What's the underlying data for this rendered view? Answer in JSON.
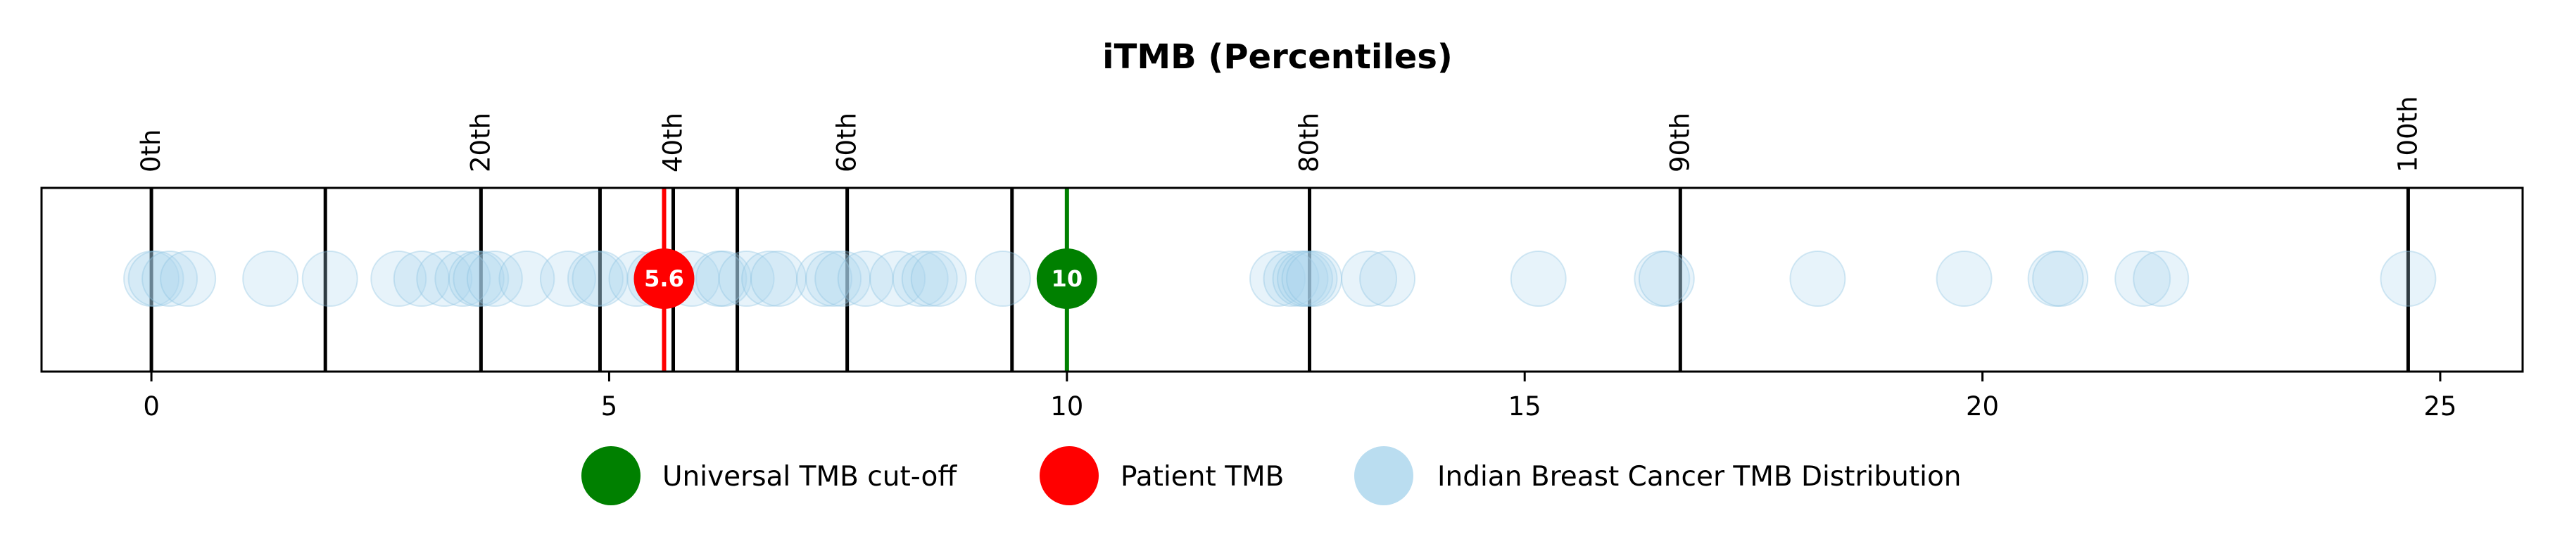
{
  "chart_data": {
    "type": "scatter",
    "title": "iTMB (Percentiles)",
    "xlim": [
      -1.2,
      25.9
    ],
    "x_ticks": [
      0,
      5,
      10,
      15,
      20,
      25
    ],
    "percentile_lines": [
      {
        "label": "0th",
        "x": 0
      },
      {
        "label": "20th",
        "x": 3.6
      },
      {
        "label": "40th",
        "x": 5.7
      },
      {
        "label": "60th",
        "x": 7.6
      },
      {
        "label": "80th",
        "x": 12.65
      },
      {
        "label": "90th",
        "x": 16.7
      },
      {
        "label": "100th",
        "x": 24.65
      }
    ],
    "unlabeled_lines": [
      1.9,
      4.9,
      6.4,
      9.4
    ],
    "series": [
      {
        "name": "Indian Breast Cancer TMB Distribution",
        "color": "#a9d4ec",
        "x": [
          0,
          0.05,
          0.2,
          0.4,
          1.3,
          1.95,
          2.7,
          2.95,
          3.2,
          3.4,
          3.55,
          3.6,
          3.75,
          4.1,
          4.55,
          4.85,
          4.9,
          5.3,
          5.5,
          5.9,
          6.2,
          6.25,
          6.5,
          6.75,
          6.85,
          7.35,
          7.45,
          7.55,
          7.8,
          8.15,
          8.4,
          8.5,
          8.6,
          9.3,
          12.3,
          12.45,
          12.55,
          12.6,
          12.65,
          12.7,
          13.3,
          13.5,
          15.15,
          16.5,
          16.55,
          18.2,
          19.8,
          20.8,
          20.85,
          21.75,
          21.95,
          24.65
        ],
        "y": 0
      },
      {
        "name": "Patient TMB",
        "color": "#ff0000",
        "x": [
          5.6
        ],
        "y": 0,
        "value_label": "5.6"
      },
      {
        "name": "Universal TMB cut-off",
        "color": "#008000",
        "x": [
          10
        ],
        "y": 0,
        "value_label": "10"
      }
    ],
    "grid": false,
    "legend_position": "bottom-center"
  }
}
